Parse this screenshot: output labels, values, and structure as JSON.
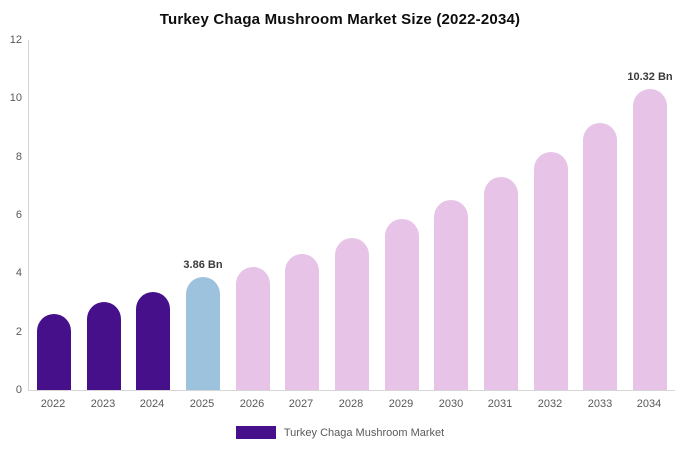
{
  "chart_data": {
    "type": "bar",
    "title": "Turkey Chaga Mushroom Market Size (2022-2034)",
    "categories": [
      "2022",
      "2023",
      "2024",
      "2025",
      "2026",
      "2027",
      "2028",
      "2029",
      "2030",
      "2031",
      "2032",
      "2033",
      "2034"
    ],
    "values": [
      2.6,
      3.0,
      3.35,
      3.86,
      4.2,
      4.65,
      5.2,
      5.85,
      6.5,
      7.3,
      8.15,
      9.15,
      10.32
    ],
    "bar_colors": [
      "#45108A",
      "#45108A",
      "#45108A",
      "#9CC2DE",
      "#E6C3E7",
      "#E6C3E7",
      "#E6C3E7",
      "#E6C3E7",
      "#E6C3E7",
      "#E6C3E7",
      "#E6C3E7",
      "#E6C3E7",
      "#E6C3E7"
    ],
    "annotations": [
      {
        "category": "2025",
        "text": "3.86 Bn"
      },
      {
        "category": "2034",
        "text": "10.32 Bn"
      }
    ],
    "xlabel": "",
    "ylabel": "",
    "ylim": [
      0,
      12
    ],
    "yticks": [
      0,
      2,
      4,
      6,
      8,
      10,
      12
    ],
    "grid": false,
    "legend": {
      "position": "bottom",
      "entries": [
        {
          "label": "Turkey Chaga Mushroom Market",
          "color": "#45108A"
        }
      ]
    }
  }
}
